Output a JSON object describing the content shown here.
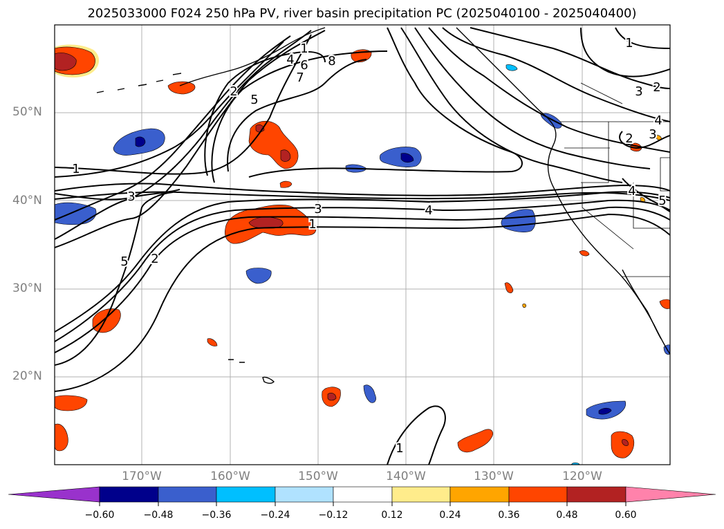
{
  "title": "2025033000 F024 250 hPa PV, river basin precipitation PC (2025040100 - 2025040400)",
  "latitude_labels": [
    "50°N",
    "40°N",
    "30°N",
    "20°N"
  ],
  "longitude_labels": [
    "170°W",
    "160°W",
    "150°W",
    "140°W",
    "130°W",
    "120°W"
  ],
  "colorbar": {
    "colors": [
      "#9932cc",
      "#00008b",
      "#3a5fcd",
      "#00bfff",
      "#b0e2ff",
      "#ffffff",
      "#ffec8b",
      "#ffa500",
      "#ff4500",
      "#b22222",
      "#ff82ab"
    ],
    "tick_labels": [
      "−0.60",
      "−0.48",
      "−0.36",
      "−0.24",
      "−0.12",
      "0.12",
      "0.24",
      "0.36",
      "0.48",
      "0.60"
    ]
  },
  "contour_labels": [
    "1",
    "3",
    "5",
    "2",
    "5",
    "2",
    "4",
    "6",
    "7",
    "8",
    "3",
    "1",
    "4",
    "1",
    "1",
    "3",
    "2",
    "3",
    "2",
    "4",
    "5",
    "4",
    "1"
  ]
}
